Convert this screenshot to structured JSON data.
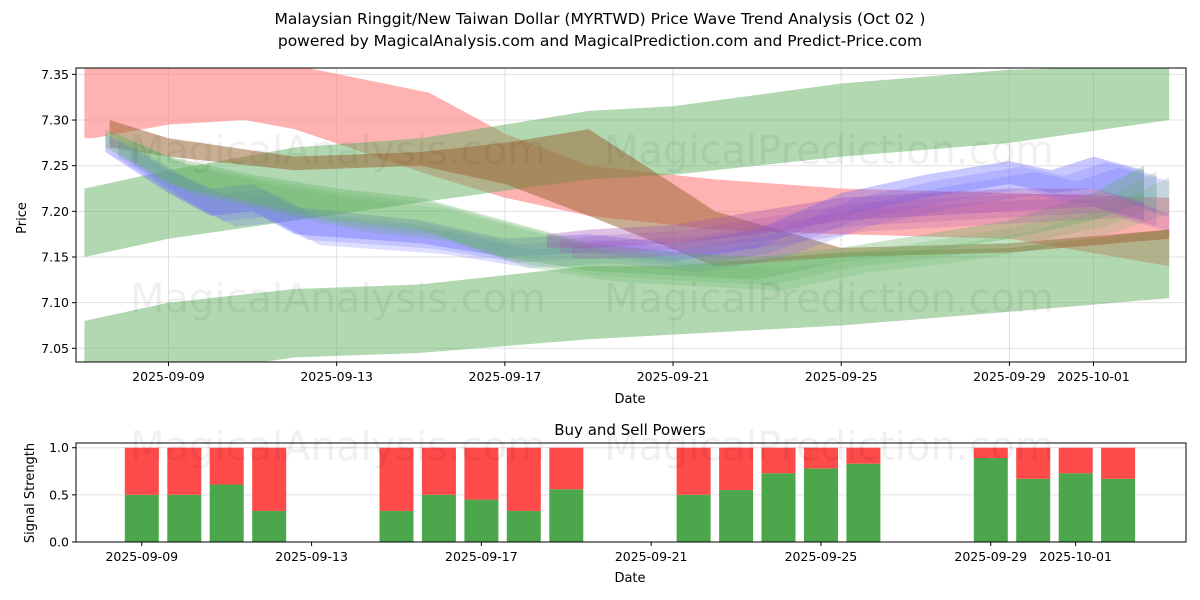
{
  "title_line1": "Malaysian Ringgit/New Taiwan Dollar (MYRTWD) Price Wave Trend Analysis (Oct 02 )",
  "title_line2": "powered by MagicalAnalysis.com and MagicalPrediction.com and Predict-Price.com",
  "watermarks": [
    "MagicalAnalysis.com",
    "MagicalPrediction.com"
  ],
  "colors": {
    "green": "#4ca64c",
    "red": "#ff4a4a",
    "band_red": "#ff7f7f",
    "band_green": "#64b264",
    "band_blue": "#6464ff",
    "grid": "#e0e0e0"
  },
  "chart_data": [
    {
      "type": "area",
      "title": "Price Wave Trend Analysis",
      "xlabel": "Date",
      "ylabel": "Price",
      "ylim": [
        7.035,
        7.357
      ],
      "yticks": [
        "7.05",
        "7.10",
        "7.15",
        "7.20",
        "7.25",
        "7.30",
        "7.35"
      ],
      "ytick_values": [
        7.05,
        7.1,
        7.15,
        7.2,
        7.25,
        7.3,
        7.35
      ],
      "xticks": [
        "2025-09-09",
        "2025-09-13",
        "2025-09-17",
        "2025-09-21",
        "2025-09-25",
        "2025-09-29",
        "2025-10-01"
      ],
      "xtick_days": [
        0,
        4,
        8,
        12,
        16,
        20,
        22
      ],
      "x_origin": "2025-09-09",
      "xlim_days": [
        -2.2,
        24.2
      ],
      "grid": true,
      "bands": [
        {
          "name": "red-upper",
          "color": "red",
          "opacity": 0.6,
          "x": [
            -2,
            -1.8,
            0,
            1.8,
            3,
            6.2,
            8,
            10,
            13,
            16,
            20,
            23.8
          ],
          "upper": [
            7.36,
            7.36,
            7.36,
            7.36,
            7.36,
            7.33,
            7.285,
            7.25,
            7.235,
            7.225,
            7.22,
            7.215
          ],
          "lower": [
            7.28,
            7.28,
            7.295,
            7.3,
            7.29,
            7.24,
            7.215,
            7.195,
            7.18,
            7.175,
            7.17,
            7.14
          ]
        },
        {
          "name": "green-upper",
          "color": "green",
          "opacity": 0.5,
          "x": [
            -2,
            0,
            3,
            6,
            10,
            12,
            16,
            20,
            23.8
          ],
          "upper": [
            7.225,
            7.245,
            7.27,
            7.28,
            7.31,
            7.315,
            7.34,
            7.355,
            7.36
          ],
          "lower": [
            7.15,
            7.17,
            7.19,
            7.21,
            7.235,
            7.24,
            7.26,
            7.275,
            7.3
          ]
        },
        {
          "name": "green-lower",
          "color": "green",
          "opacity": 0.5,
          "x": [
            -2,
            0,
            3,
            6,
            10,
            12,
            16,
            20,
            23.8
          ],
          "upper": [
            7.08,
            7.1,
            7.115,
            7.12,
            7.14,
            7.14,
            7.155,
            7.16,
            7.18
          ],
          "lower": [
            7.02,
            7.02,
            7.04,
            7.045,
            7.06,
            7.065,
            7.075,
            7.09,
            7.105
          ]
        },
        {
          "name": "brown-overlap",
          "color": "brown",
          "opacity": 0.55,
          "x": [
            -1.4,
            0,
            3,
            6,
            8,
            10,
            13,
            16,
            20,
            23.8
          ],
          "upper": [
            7.3,
            7.28,
            7.26,
            7.265,
            7.275,
            7.29,
            7.2,
            7.16,
            7.165,
            7.18
          ],
          "lower": [
            7.27,
            7.26,
            7.245,
            7.25,
            7.23,
            7.195,
            7.14,
            7.15,
            7.155,
            7.17
          ]
        },
        {
          "name": "blue-wave",
          "color": "blue",
          "opacity": 0.35,
          "x": [
            -1.5,
            0,
            1,
            2,
            3,
            6,
            8,
            10,
            12,
            14,
            16,
            18,
            20,
            21,
            22,
            23.2
          ],
          "upper": [
            7.285,
            7.245,
            7.225,
            7.23,
            7.205,
            7.19,
            7.17,
            7.175,
            7.165,
            7.18,
            7.22,
            7.24,
            7.255,
            7.245,
            7.26,
            7.245
          ],
          "lower": [
            7.265,
            7.22,
            7.195,
            7.2,
            7.175,
            7.165,
            7.15,
            7.155,
            7.145,
            7.16,
            7.195,
            7.215,
            7.23,
            7.22,
            7.225,
            7.205
          ]
        },
        {
          "name": "green-wave",
          "color": "green",
          "opacity": 0.35,
          "x": [
            -1.5,
            0,
            2,
            4,
            6,
            8,
            10,
            12,
            14,
            16,
            18,
            20,
            22,
            23.2
          ],
          "upper": [
            7.29,
            7.26,
            7.24,
            7.225,
            7.215,
            7.19,
            7.165,
            7.155,
            7.15,
            7.16,
            7.175,
            7.19,
            7.22,
            7.25
          ],
          "lower": [
            7.27,
            7.23,
            7.21,
            7.19,
            7.18,
            7.15,
            7.135,
            7.13,
            7.125,
            7.145,
            7.155,
            7.17,
            7.19,
            7.21
          ]
        },
        {
          "name": "purple-wave",
          "color": "purple",
          "opacity": 0.35,
          "x": [
            9,
            10,
            12,
            14,
            16,
            18,
            20,
            22,
            23.2
          ],
          "upper": [
            7.175,
            7.18,
            7.185,
            7.2,
            7.215,
            7.22,
            7.225,
            7.225,
            7.21
          ],
          "lower": [
            7.16,
            7.16,
            7.165,
            7.175,
            7.19,
            7.195,
            7.2,
            7.205,
            7.19
          ]
        }
      ]
    },
    {
      "type": "bar",
      "title": "Buy and Sell Powers",
      "xlabel": "Date",
      "ylabel": "Signal Strength",
      "ylim": [
        0,
        1.05
      ],
      "yticks": [
        "0.0",
        "0.5",
        "1.0"
      ],
      "ytick_values": [
        0,
        0.5,
        1.0
      ],
      "xticks": [
        "2025-09-09",
        "2025-09-13",
        "2025-09-17",
        "2025-09-21",
        "2025-09-25",
        "2025-09-29",
        "2025-10-01"
      ],
      "xtick_days": [
        0,
        4,
        8,
        12,
        16,
        20,
        22
      ],
      "x_origin": "2025-09-09",
      "xlim_days": [
        -1.55,
        24.6
      ],
      "stacked": true,
      "categories": [
        "2025-09-09",
        "2025-09-10",
        "2025-09-11",
        "2025-09-12",
        "2025-09-15",
        "2025-09-16",
        "2025-09-17",
        "2025-09-18",
        "2025-09-19",
        "2025-09-22",
        "2025-09-23",
        "2025-09-24",
        "2025-09-25",
        "2025-09-26",
        "2025-09-29",
        "2025-09-30",
        "2025-10-01",
        "2025-10-02"
      ],
      "days": [
        0,
        1,
        2,
        3,
        6,
        7,
        8,
        9,
        10,
        13,
        14,
        15,
        16,
        17,
        20,
        21,
        22,
        23
      ],
      "series": [
        {
          "name": "Buy",
          "color": "#4ca64c",
          "values": [
            0.5,
            0.5,
            0.61,
            0.33,
            0.33,
            0.5,
            0.45,
            0.33,
            0.56,
            0.5,
            0.55,
            0.73,
            0.78,
            0.83,
            0.89,
            0.67,
            0.73,
            0.67
          ]
        },
        {
          "name": "Sell",
          "color": "#ff4a4a",
          "values": [
            0.5,
            0.5,
            0.39,
            0.67,
            0.67,
            0.5,
            0.55,
            0.67,
            0.44,
            0.5,
            0.45,
            0.27,
            0.22,
            0.17,
            0.11,
            0.33,
            0.27,
            0.33
          ]
        }
      ]
    }
  ]
}
